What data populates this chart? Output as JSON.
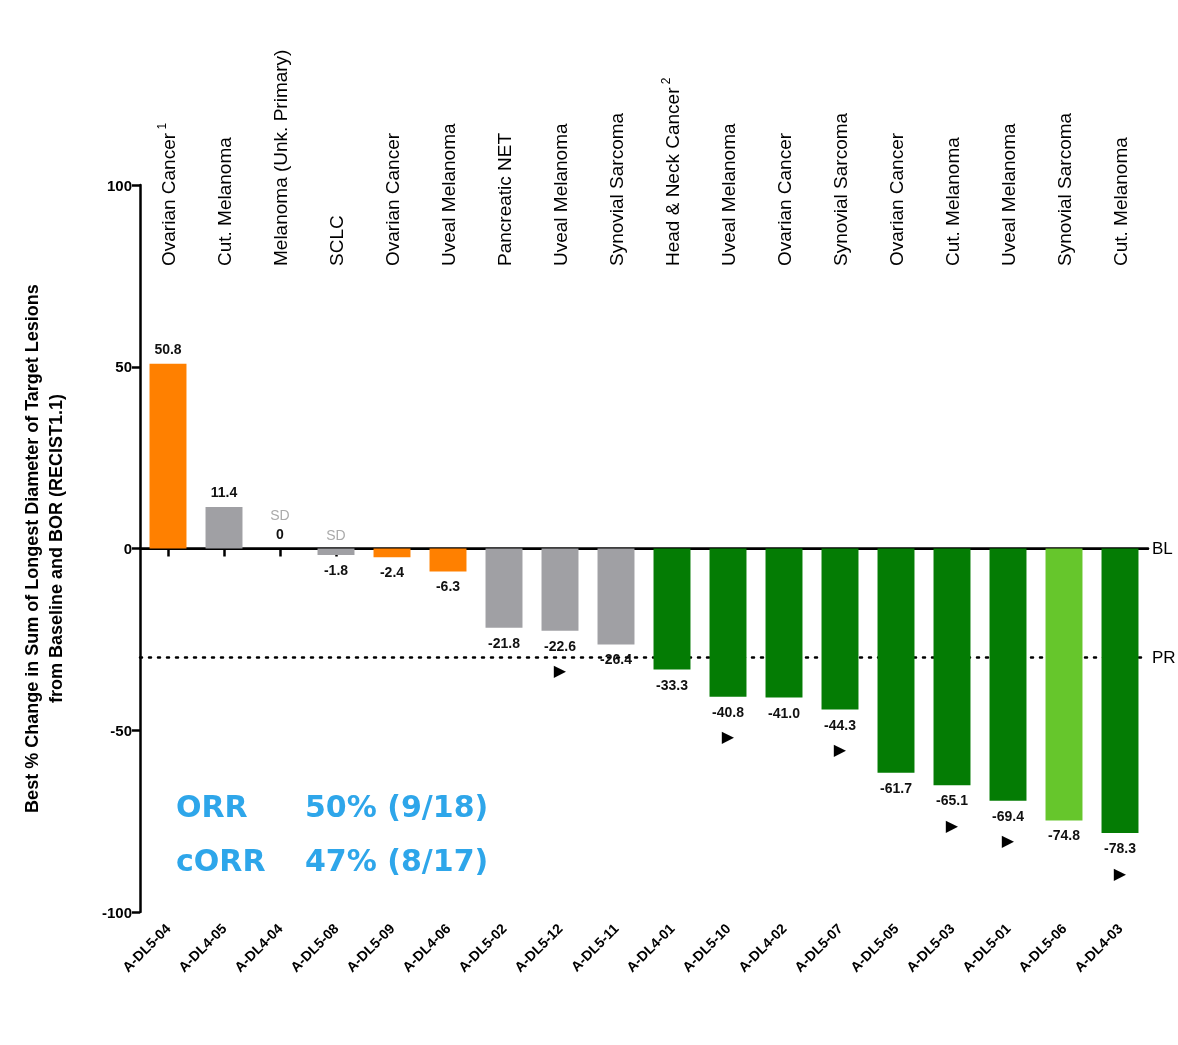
{
  "chart_data": {
    "type": "bar",
    "ylabel": "Best % Change in Sum of Longest Diameter of Target Lesions\nfrom Baseline and BOR (RECIST1.1)",
    "categories": [
      "A-DL5-04",
      "A-DL4-05",
      "A-DL4-04",
      "A-DL5-08",
      "A-DL5-09",
      "A-DL4-06",
      "A-DL5-02",
      "A-DL5-12",
      "A-DL5-11",
      "A-DL4-01",
      "A-DL5-10",
      "A-DL4-02",
      "A-DL5-07",
      "A-DL5-05",
      "A-DL5-03",
      "A-DL5-01",
      "A-DL5-06",
      "A-DL4-03"
    ],
    "values": [
      50.8,
      11.4,
      0,
      -1.8,
      -2.4,
      -6.3,
      -21.8,
      -22.6,
      -26.4,
      -33.3,
      -40.8,
      -41.0,
      -44.3,
      -61.7,
      -65.1,
      -69.4,
      -74.8,
      -78.3
    ],
    "value_labels": [
      "50.8",
      "11.4",
      "0",
      "-1.8",
      "-2.4",
      "-6.3",
      "-21.8",
      "-22.6",
      "-26.4",
      "-33.3",
      "-40.8",
      "-41.0",
      "-44.3",
      "-61.7",
      "-65.1",
      "-69.4",
      "-74.8",
      "-78.3"
    ],
    "colors": [
      "#ff8000",
      "#a0a0a4",
      "#a0a0a4",
      "#a0a0a4",
      "#ff8000",
      "#ff8000",
      "#a0a0a4",
      "#a0a0a4",
      "#a0a0a4",
      "#047c04",
      "#047c04",
      "#047c04",
      "#047c04",
      "#047c04",
      "#047c04",
      "#047c04",
      "#66c62c",
      "#047c04"
    ],
    "ylim": [
      -100,
      100
    ],
    "yticks": [
      -100,
      -50,
      0,
      50,
      100
    ],
    "grid": false,
    "ref_lines": [
      {
        "axis": "y",
        "value": 0,
        "label": "BL",
        "color": "#000000",
        "line_style": "solid"
      },
      {
        "axis": "y",
        "value": -30,
        "label": "PR",
        "color": "#000000",
        "line_style": "dotted"
      }
    ],
    "annotations": [
      "Ovarian Cancer$^{1}$",
      "Cut. Melanoma",
      "Melanoma (Unk. Primary)",
      "SCLC",
      "Ovarian Cancer",
      "Uveal Melanoma",
      "Pancreatic NET",
      "Uveal Melanoma",
      "Synovial Sarcoma",
      "Head & Neck Cancer$^{2}$",
      "Uveal Melanoma",
      "Ovarian Cancer",
      "Synovial Sarcoma",
      "Ovarian Cancer",
      "Cut. Melanoma",
      "Uveal Melanoma",
      "Synovial Sarcoma",
      "Cut. Melanoma",
      {
        "text": "SD",
        "x": "A-DL4-04",
        "y": 0
      },
      {
        "text": "SD",
        "x": "A-DL5-08",
        "y": 0
      },
      {
        "text": "▶",
        "x": "A-DL5-12",
        "y": -22.6
      },
      {
        "text": "▶",
        "x": "A-DL5-10",
        "y": -40.8
      },
      {
        "text": "▶",
        "x": "A-DL5-07",
        "y": -44.3
      },
      {
        "text": "▶",
        "x": "A-DL5-03",
        "y": -65.1
      },
      {
        "text": "▶",
        "x": "A-DL5-01",
        "y": -69.4
      },
      {
        "text": "▶",
        "x": "A-DL4-03",
        "y": -78.3
      },
      "ORR",
      "50% (9/18)",
      "cORR",
      "47% (8/17)"
    ]
  }
}
